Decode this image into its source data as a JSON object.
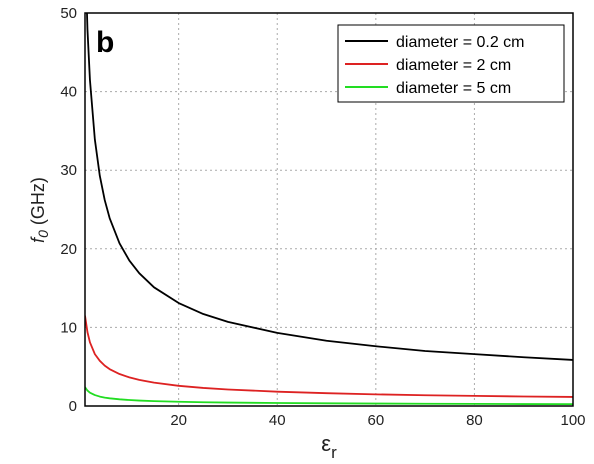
{
  "chart_data": {
    "type": "line",
    "panel_label": "b",
    "xlabel": "ε",
    "xlabel_subscript": "r",
    "ylabel": "f",
    "ylabel_subscript": "0",
    "ylabel_unit": " (GHz)",
    "xlim": [
      1,
      100
    ],
    "ylim": [
      0,
      50
    ],
    "x_ticks": [
      20,
      40,
      60,
      80,
      100
    ],
    "y_ticks": [
      0,
      10,
      20,
      30,
      40,
      50
    ],
    "grid": true,
    "legend_position": "top-right",
    "series": [
      {
        "name": "diameter = 0.2 cm",
        "color": "#000000",
        "x": [
          1,
          1.5,
          2,
          3,
          4,
          5,
          6,
          8,
          10,
          12,
          15,
          20,
          25,
          30,
          40,
          50,
          60,
          70,
          80,
          90,
          100
        ],
        "y": [
          58.6,
          47.9,
          41.5,
          33.9,
          29.3,
          26.2,
          23.9,
          20.7,
          18.5,
          16.9,
          15.1,
          13.1,
          11.7,
          10.7,
          9.3,
          8.3,
          7.6,
          7.0,
          6.6,
          6.2,
          5.86
        ]
      },
      {
        "name": "diameter = 2 cm",
        "color": "#dd2222",
        "x": [
          1,
          1.5,
          2,
          3,
          4,
          5,
          6,
          8,
          10,
          12,
          15,
          20,
          25,
          30,
          40,
          50,
          60,
          70,
          80,
          90,
          100
        ],
        "y": [
          11.5,
          9.4,
          8.1,
          6.6,
          5.75,
          5.14,
          4.69,
          4.07,
          3.64,
          3.32,
          2.97,
          2.57,
          2.3,
          2.1,
          1.82,
          1.63,
          1.48,
          1.37,
          1.29,
          1.21,
          1.15
        ]
      },
      {
        "name": "diameter = 5 cm",
        "color": "#22dd22",
        "x": [
          1,
          1.5,
          2,
          3,
          4,
          5,
          6,
          8,
          10,
          12,
          15,
          20,
          25,
          30,
          40,
          50,
          60,
          70,
          80,
          90,
          100
        ],
        "y": [
          2.4,
          1.96,
          1.7,
          1.39,
          1.2,
          1.07,
          0.98,
          0.85,
          0.76,
          0.69,
          0.62,
          0.54,
          0.48,
          0.44,
          0.38,
          0.34,
          0.31,
          0.29,
          0.27,
          0.25,
          0.24
        ]
      }
    ]
  }
}
